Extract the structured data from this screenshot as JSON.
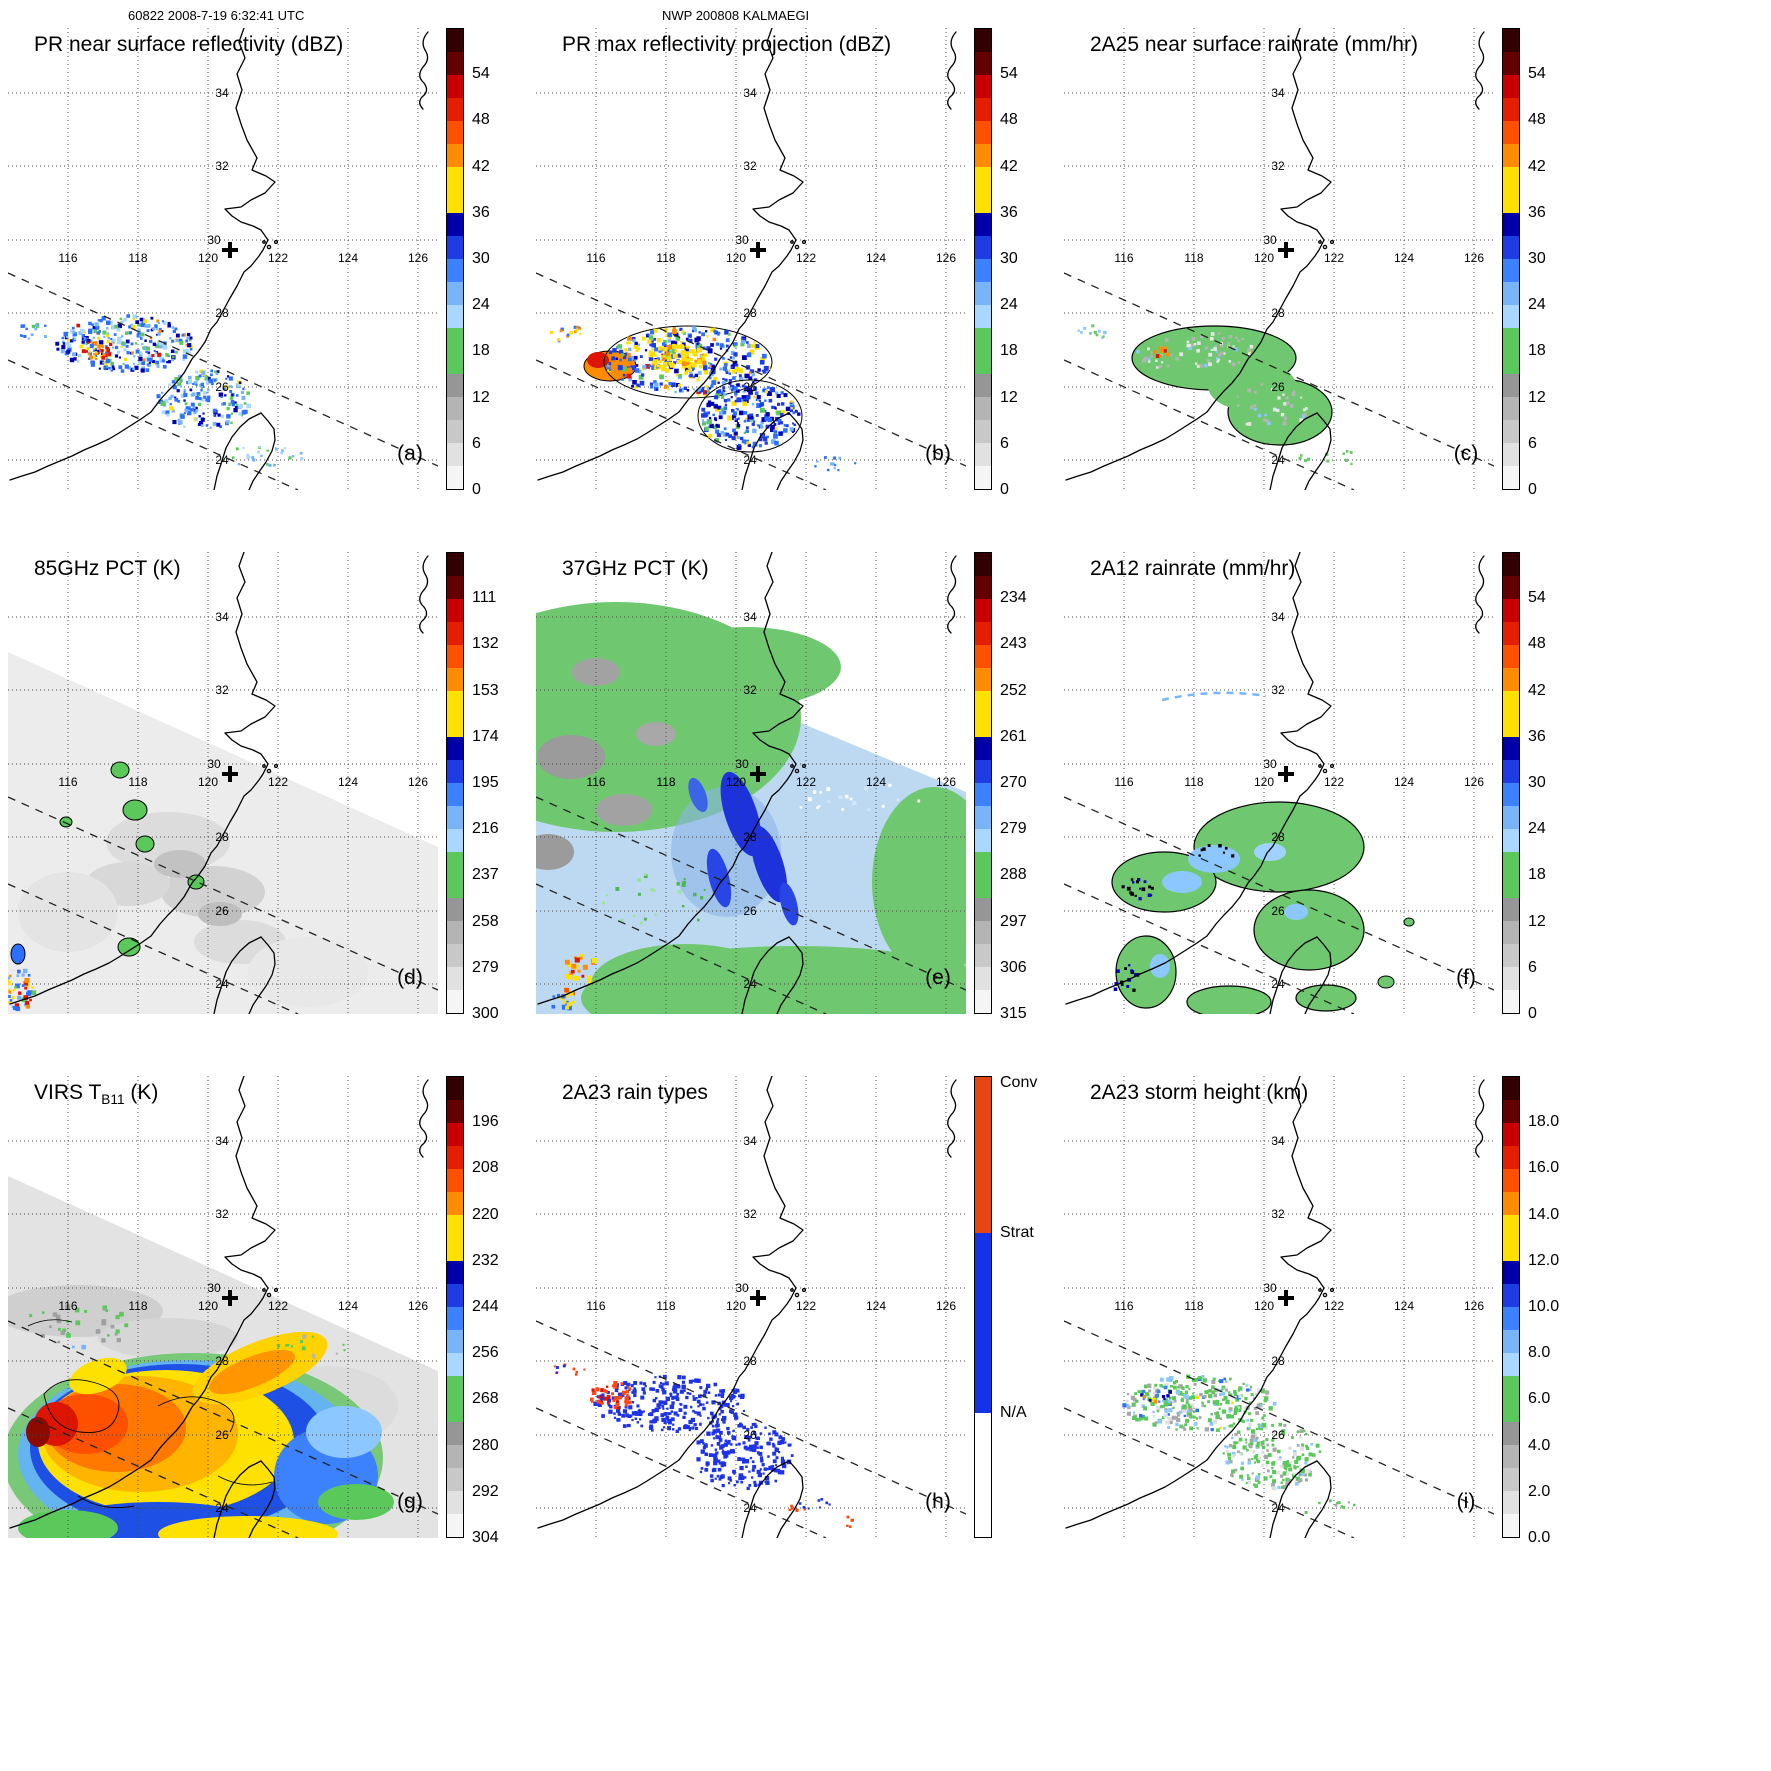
{
  "header": {
    "left": "60822 2008-7-19 6:32:41 UTC",
    "center": "NWP 200808 KALMAEGI"
  },
  "axes": {
    "lon_labels": [
      "116",
      "118",
      "120",
      "122",
      "124",
      "126"
    ],
    "lat_labels": [
      "34",
      "32",
      "30",
      "28",
      "26",
      "24"
    ]
  },
  "panels": [
    {
      "id": "a",
      "title": "PR near surface reflectivity (dBZ)",
      "corner_label": "(a)",
      "colorbar": "dbz"
    },
    {
      "id": "b",
      "title": "PR max reflectivity projection (dBZ)",
      "corner_label": "(b)",
      "colorbar": "dbz"
    },
    {
      "id": "c",
      "title": "2A25 near surface rainrate (mm/hr)",
      "corner_label": "(c)",
      "colorbar": "dbz"
    },
    {
      "id": "d",
      "title": "85GHz PCT (K)",
      "corner_label": "(d)",
      "colorbar": "pct85"
    },
    {
      "id": "e",
      "title": "37GHz PCT (K)",
      "corner_label": "(e)",
      "colorbar": "pct37"
    },
    {
      "id": "f",
      "title": "2A12 rainrate (mm/hr)",
      "corner_label": "(f)",
      "colorbar": "dbz"
    },
    {
      "id": "g",
      "title_pre": "VIRS T",
      "title_sub": "B11",
      "title_post": " (K)",
      "corner_label": "(g)",
      "colorbar": "virs"
    },
    {
      "id": "h",
      "title": "2A23 rain types",
      "corner_label": "(h)",
      "colorbar": "raintype"
    },
    {
      "id": "i",
      "title": "2A23 storm height (km)",
      "corner_label": "(i)",
      "colorbar": "height"
    }
  ],
  "colorbars": {
    "segment_colors": [
      "#320000",
      "#640000",
      "#c80000",
      "#e61e00",
      "#ff5000",
      "#ff8c00",
      "#ffe100",
      "#ffe100",
      "#0000aa",
      "#1e3ce6",
      "#3c82ff",
      "#78b4fa",
      "#a8d8ff",
      "#5ac85a",
      "#5ac85a",
      "#969696",
      "#b4b4b4",
      "#c8c8c8",
      "#e1e1e1",
      "#f5f5f5"
    ],
    "dbz": {
      "ticks": [
        "54",
        "48",
        "42",
        "36",
        "30",
        "24",
        "18",
        "12",
        "6",
        "0"
      ]
    },
    "pct85": {
      "ticks": [
        "111",
        "132",
        "153",
        "174",
        "195",
        "216",
        "237",
        "258",
        "279",
        "300"
      ]
    },
    "pct37": {
      "ticks": [
        "234",
        "243",
        "252",
        "261",
        "270",
        "279",
        "288",
        "297",
        "306",
        "315"
      ]
    },
    "virs": {
      "ticks": [
        "196",
        "208",
        "220",
        "232",
        "244",
        "256",
        "268",
        "280",
        "292",
        "304"
      ]
    },
    "height": {
      "ticks": [
        "18.0",
        "16.0",
        "14.0",
        "12.0",
        "10.0",
        "8.0",
        "6.0",
        "4.0",
        "2.0",
        "0.0"
      ]
    },
    "raintype": {
      "segments": [
        {
          "label": "Conv",
          "color": "#e64614",
          "frac": 0.34
        },
        {
          "label": "Strat",
          "color": "#1432e6",
          "frac": 0.39
        },
        {
          "label": "N/A",
          "color": "#ffffff",
          "frac": 0.27
        }
      ]
    }
  },
  "chart_data": {
    "type": "heatmap",
    "figure": "3x3 multi-panel TRMM satellite overpass maps for one typhoon overpass",
    "overpass_header": "60822 2008-7-19 6:32:41 UTC",
    "storm_header": "NWP 200808 KALMAEGI",
    "map_extent": {
      "lon_min": 114.3,
      "lon_max": 126.6,
      "lat_min": 23.2,
      "lat_max": 35.8
    },
    "lon_ticks": [
      116,
      118,
      120,
      122,
      124,
      126
    ],
    "lat_ticks": [
      34,
      32,
      30,
      28,
      26,
      24
    ],
    "storm_center_marker": {
      "lon": 120.6,
      "lat": 29.7
    },
    "panels": [
      {
        "label": "(a)",
        "title": "PR near surface reflectivity (dBZ)",
        "units": "dBZ",
        "scale_ticks": [
          54,
          48,
          42,
          36,
          30,
          24,
          18,
          12,
          6,
          0
        ]
      },
      {
        "label": "(b)",
        "title": "PR max reflectivity projection (dBZ)",
        "units": "dBZ",
        "scale_ticks": [
          54,
          48,
          42,
          36,
          30,
          24,
          18,
          12,
          6,
          0
        ]
      },
      {
        "label": "(c)",
        "title": "2A25 near surface rainrate (mm/hr)",
        "units": "mm/hr",
        "scale_ticks": [
          54,
          48,
          42,
          36,
          30,
          24,
          18,
          12,
          6,
          0
        ]
      },
      {
        "label": "(d)",
        "title": "85GHz PCT (K)",
        "units": "K",
        "scale_ticks": [
          111,
          132,
          153,
          174,
          195,
          216,
          237,
          258,
          279,
          300
        ]
      },
      {
        "label": "(e)",
        "title": "37GHz PCT (K)",
        "units": "K",
        "scale_ticks": [
          234,
          243,
          252,
          261,
          270,
          279,
          288,
          297,
          306,
          315
        ]
      },
      {
        "label": "(f)",
        "title": "2A12 rainrate (mm/hr)",
        "units": "mm/hr",
        "scale_ticks": [
          54,
          48,
          42,
          36,
          30,
          24,
          18,
          12,
          6,
          0
        ]
      },
      {
        "label": "(g)",
        "title": "VIRS TB11 (K)",
        "units": "K",
        "scale_ticks": [
          196,
          208,
          220,
          232,
          244,
          256,
          268,
          280,
          292,
          304
        ]
      },
      {
        "label": "(h)",
        "title": "2A23 rain types",
        "scale_categories": [
          "Conv",
          "Strat",
          "N/A"
        ]
      },
      {
        "label": "(i)",
        "title": "2A23 storm height (km)",
        "units": "km",
        "scale_ticks": [
          18.0,
          16.0,
          14.0,
          12.0,
          10.0,
          8.0,
          6.0,
          4.0,
          2.0,
          0.0
        ]
      }
    ]
  }
}
